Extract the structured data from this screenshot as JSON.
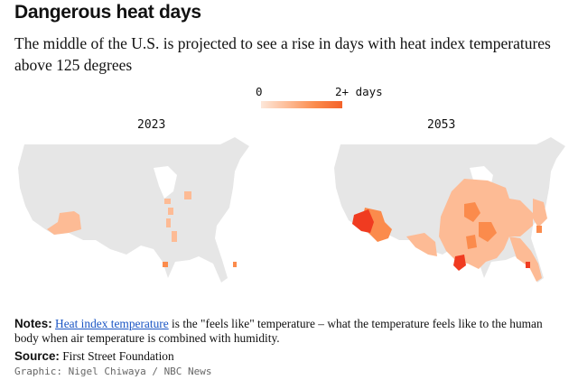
{
  "title": "Dangerous heat days",
  "subtitle": "The middle of the U.S. is projected to see a rise in days with heat index temperatures above 125 degrees",
  "legend": {
    "min_label": "0",
    "max_label": "2+ days",
    "colors": [
      "#fde7d9",
      "#fdbb95",
      "#fb8b4c",
      "#f4622a"
    ]
  },
  "maps": [
    {
      "year": "2023"
    },
    {
      "year": "2053"
    }
  ],
  "colors": {
    "land": "#e6e6e6",
    "border": "#ffffff",
    "light": "#fdbb95",
    "mid": "#fb8b4c",
    "dark": "#f03b20"
  },
  "notes": {
    "label": "Notes:",
    "link_text": "Heat index temperature",
    "text": " is the \"feels like\" temperature – what the temperature feels like to the human body when air temperature is combined with humidity."
  },
  "source": {
    "label": "Source:",
    "text": " First Street Foundation"
  },
  "credit": "Graphic: Nigel Chiwaya / NBC News"
}
